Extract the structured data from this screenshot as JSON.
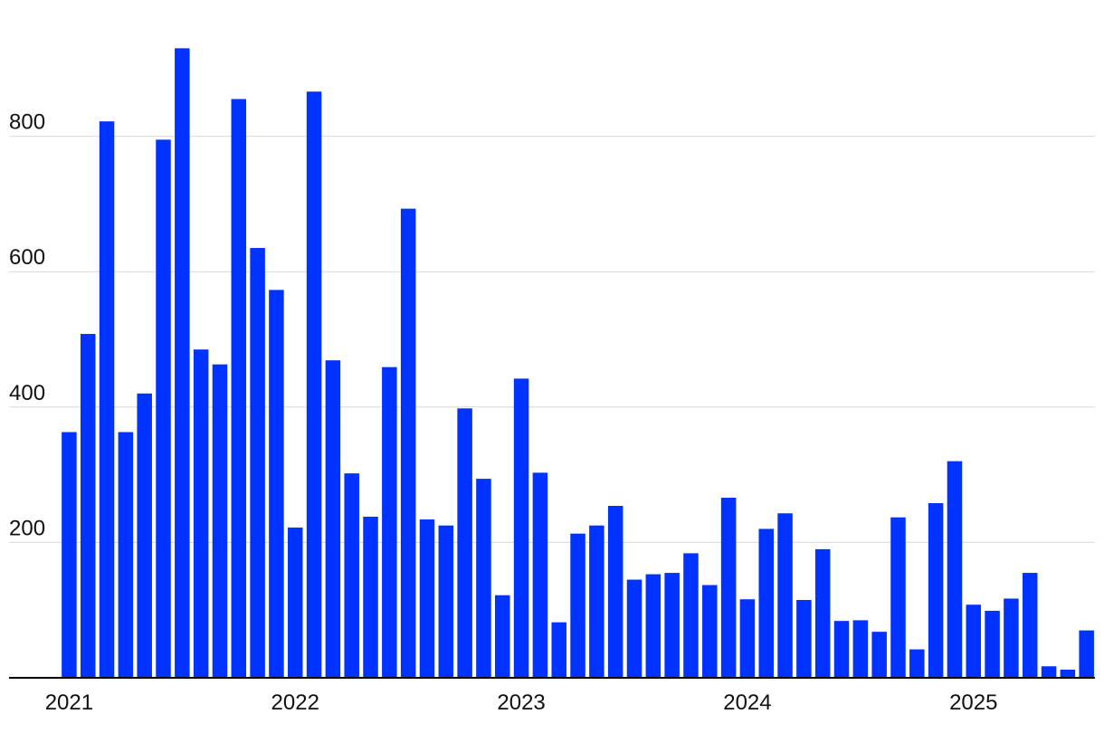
{
  "chart_data": {
    "type": "bar",
    "title": "",
    "xlabel": "",
    "ylabel": "",
    "ylim": [
      0,
      930
    ],
    "grid": true,
    "bar_color": "#0033ff",
    "y_ticks": [
      200,
      400,
      600,
      800
    ],
    "x_tick_labels": [
      {
        "label": "2021",
        "month": "2021-01"
      },
      {
        "label": "2022",
        "month": "2022-01"
      },
      {
        "label": "2023",
        "month": "2023-01"
      },
      {
        "label": "2024",
        "month": "2024-01"
      },
      {
        "label": "2025",
        "month": "2025-01"
      }
    ],
    "categories": [
      "2021-01",
      "2021-02",
      "2021-03",
      "2021-04",
      "2021-05",
      "2021-06",
      "2021-07",
      "2021-08",
      "2021-09",
      "2021-10",
      "2021-11",
      "2021-12",
      "2022-01",
      "2022-02",
      "2022-03",
      "2022-04",
      "2022-05",
      "2022-06",
      "2022-07",
      "2022-08",
      "2022-09",
      "2022-10",
      "2022-11",
      "2022-12",
      "2023-01",
      "2023-02",
      "2023-03",
      "2023-04",
      "2023-05",
      "2023-06",
      "2023-07",
      "2023-08",
      "2023-09",
      "2023-10",
      "2023-11",
      "2023-12",
      "2024-01",
      "2024-02",
      "2024-03",
      "2024-04",
      "2024-05",
      "2024-06",
      "2024-07",
      "2024-08",
      "2024-09",
      "2024-10",
      "2024-11",
      "2024-12",
      "2025-01",
      "2025-02",
      "2025-03",
      "2025-04",
      "2025-05",
      "2025-06",
      "2025-07"
    ],
    "values": [
      363,
      508,
      822,
      363,
      420,
      795,
      930,
      485,
      463,
      855,
      635,
      573,
      222,
      866,
      469,
      302,
      238,
      459,
      693,
      234,
      225,
      398,
      294,
      122,
      442,
      303,
      82,
      213,
      225,
      254,
      145,
      153,
      155,
      184,
      137,
      266,
      116,
      220,
      243,
      115,
      190,
      84,
      85,
      68,
      237,
      42,
      258,
      320,
      108,
      99,
      117,
      155,
      17,
      12,
      70
    ]
  }
}
